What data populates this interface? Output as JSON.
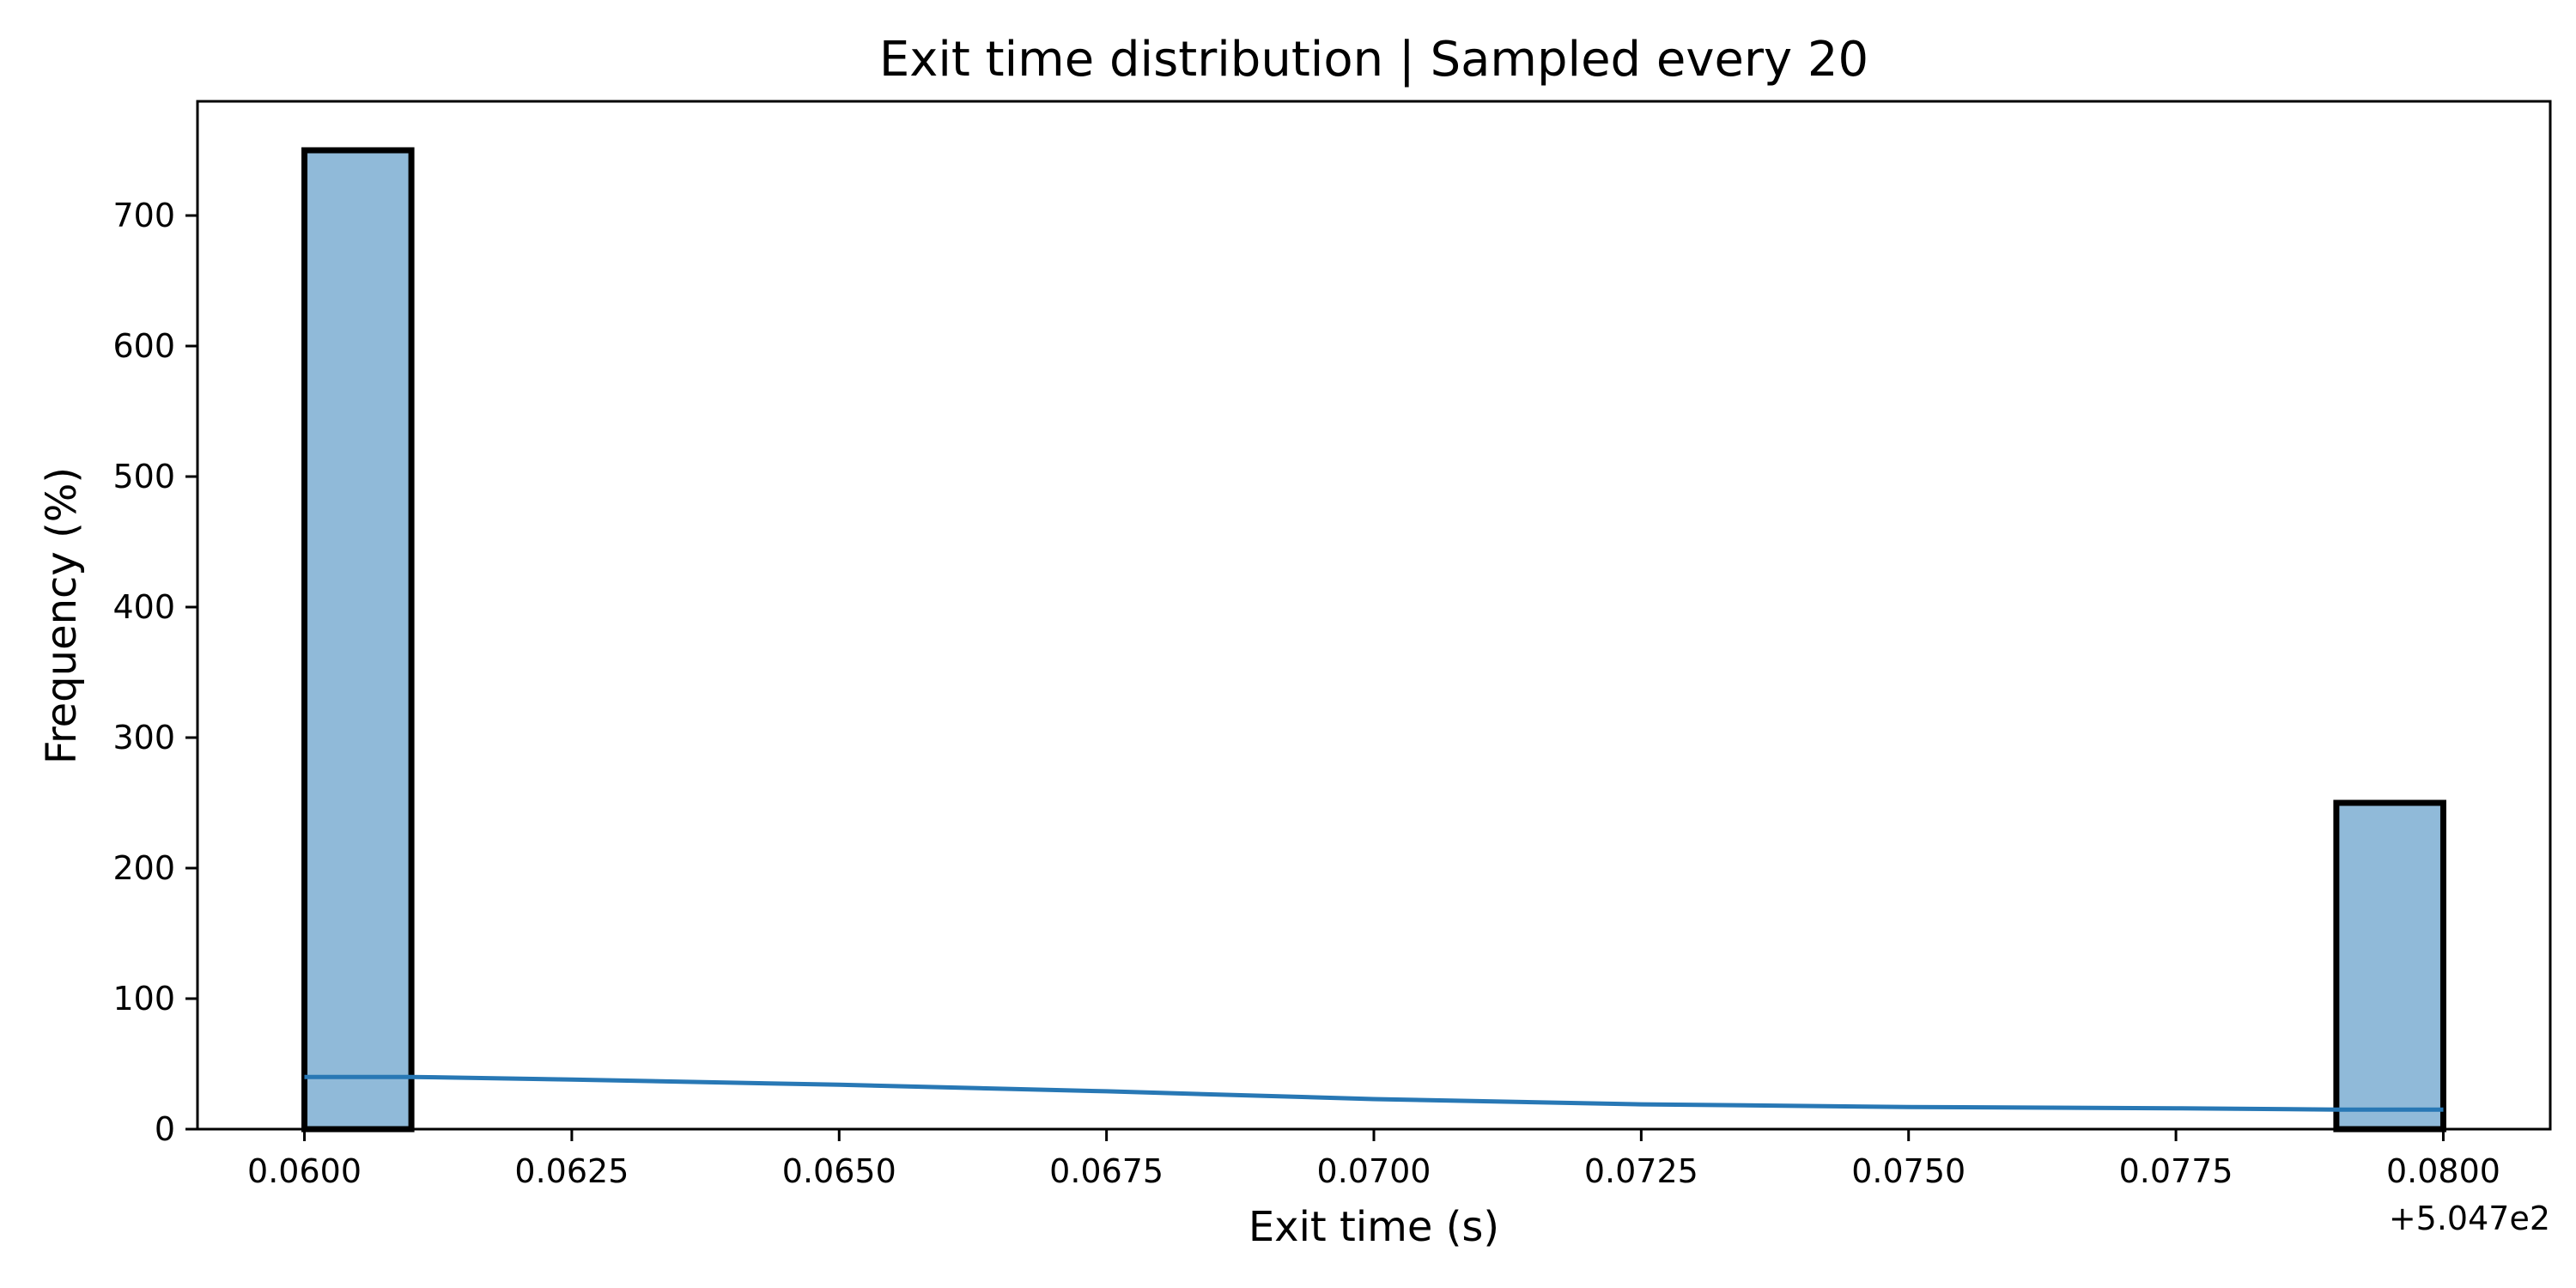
{
  "chart_data": {
    "type": "bar",
    "title": "Exit time distribution | Sampled every 20",
    "xlabel": "Exit time (s)",
    "ylabel": "Frequency (%)",
    "x_offset_label": "+5.047e2",
    "x_offset": 504.7,
    "xlim": [
      0.059,
      0.081
    ],
    "ylim": [
      0,
      787.5
    ],
    "x_ticks": [
      0.06,
      0.0625,
      0.065,
      0.0675,
      0.07,
      0.0725,
      0.075,
      0.0775,
      0.08
    ],
    "x_tick_labels": [
      "0.0600",
      "0.0625",
      "0.0650",
      "0.0675",
      "0.0700",
      "0.0725",
      "0.0750",
      "0.0775",
      "0.0800"
    ],
    "y_ticks": [
      0,
      100,
      200,
      300,
      400,
      500,
      600,
      700
    ],
    "y_tick_labels": [
      "0",
      "100",
      "200",
      "300",
      "400",
      "500",
      "600",
      "700"
    ],
    "bins": [
      {
        "x0": 0.06,
        "x1": 0.061,
        "value": 750
      },
      {
        "x0": 0.079,
        "x1": 0.08,
        "value": 250
      }
    ],
    "kde": {
      "name": "",
      "x": [
        0.06,
        0.061,
        0.0625,
        0.065,
        0.0675,
        0.07,
        0.0725,
        0.075,
        0.0775,
        0.079,
        0.08
      ],
      "y": [
        40,
        40,
        38,
        34,
        29,
        23,
        19,
        17,
        16,
        15,
        15
      ]
    },
    "grid": false,
    "colors": {
      "bar_fill": "#90bad9",
      "bar_edge": "#000000",
      "kde_line": "#2878b5",
      "axes": "#000000"
    }
  }
}
